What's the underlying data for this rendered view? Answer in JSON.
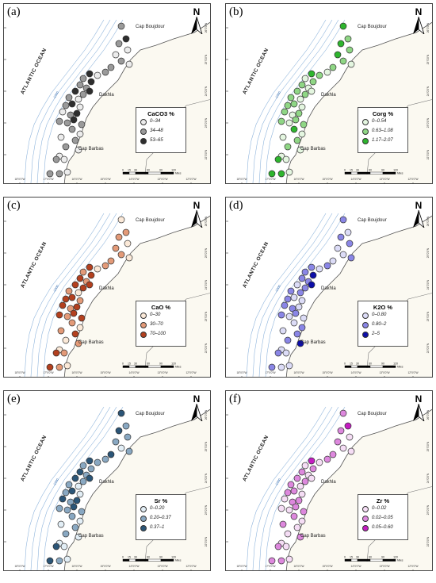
{
  "panels": [
    {
      "label": "(a)",
      "legend_title": "CaCO3 %",
      "classes": [
        "0–34",
        "34–48",
        "53–65"
      ],
      "colors": [
        "#ececec",
        "#9a9a9a",
        "#2e2e2e"
      ]
    },
    {
      "label": "(b)",
      "legend_title": "Corg %",
      "classes": [
        "0–0.54",
        "0.63–1.08",
        "1.17–2.07"
      ],
      "colors": [
        "#e4f6e0",
        "#8fd685",
        "#2eb52e"
      ]
    },
    {
      "label": "(c)",
      "legend_title": "CaO %",
      "classes": [
        "0–30",
        "30–70",
        "70–100"
      ],
      "colors": [
        "#fbe9d8",
        "#e39a78",
        "#b3401f"
      ]
    },
    {
      "label": "(d)",
      "legend_title": "K2O %",
      "classes": [
        "0–0.80",
        "0.80–2",
        "2–5"
      ],
      "colors": [
        "#dcdcf7",
        "#8a86e6",
        "#0d0ea9"
      ]
    },
    {
      "label": "(e)",
      "legend_title": "Sr %",
      "classes": [
        "0–0.20",
        "0.20–0.37",
        "0.37–1"
      ],
      "colors": [
        "#e2eef6",
        "#89a8c2",
        "#2b5577"
      ]
    },
    {
      "label": "(f)",
      "legend_title": "Zr %",
      "classes": [
        "0–0.02",
        "0.02–0.05",
        "0.05–0.60"
      ],
      "colors": [
        "#f5ddf5",
        "#dd88dd",
        "#c41dc1"
      ]
    }
  ],
  "map": {
    "north": "N",
    "ocean": "ATLANTIC OCEAN",
    "places": {
      "cap_boujdour": "Cap Boujdour",
      "dakhla": "Dakhla",
      "cap_barbas": "Cap Barbas"
    },
    "scale_ticks": [
      "0",
      "15",
      "30",
      "60",
      "90",
      "120"
    ],
    "scale_unit": "Miles",
    "isobath": "-1000",
    "lon_labels": [
      "18°0'0\"W",
      "17°0'0\"W",
      "16°0'0\"W",
      "15°0'0\"W",
      "14°0'0\"W",
      "13°0'0\"W",
      "12°0'0\"W"
    ],
    "lat_labels": [
      "26°0'0\"N",
      "25°0'0\"N",
      "24°0'0\"N",
      "23°0'0\"N",
      "22°0'0\"N"
    ]
  },
  "samples": [
    [
      1,
      2,
      0,
      1,
      2,
      1
    ],
    [
      2,
      1,
      1,
      0,
      1,
      2
    ],
    [
      1,
      2,
      1,
      1,
      2,
      1
    ],
    [
      0,
      1,
      0,
      1,
      1,
      0
    ],
    [
      0,
      2,
      1,
      0,
      1,
      1
    ],
    [
      1,
      1,
      1,
      0,
      0,
      0
    ],
    [
      0,
      0,
      0,
      1,
      1,
      0
    ],
    [
      1,
      1,
      1,
      0,
      2,
      1
    ],
    [
      1,
      0,
      1,
      1,
      1,
      1
    ],
    [
      0,
      1,
      0,
      0,
      1,
      0
    ],
    [
      2,
      2,
      2,
      1,
      2,
      2
    ],
    [
      1,
      0,
      1,
      1,
      1,
      0
    ],
    [
      2,
      1,
      2,
      2,
      1,
      1
    ],
    [
      1,
      1,
      2,
      1,
      2,
      1
    ],
    [
      1,
      0,
      1,
      1,
      1,
      0
    ],
    [
      2,
      1,
      2,
      0,
      2,
      1
    ],
    [
      1,
      1,
      2,
      1,
      1,
      1
    ],
    [
      2,
      0,
      2,
      2,
      2,
      0
    ],
    [
      1,
      1,
      1,
      1,
      1,
      1
    ],
    [
      0,
      0,
      0,
      1,
      0,
      0
    ],
    [
      2,
      1,
      2,
      0,
      2,
      1
    ],
    [
      1,
      1,
      2,
      1,
      1,
      1
    ],
    [
      0,
      0,
      1,
      0,
      0,
      0
    ],
    [
      0,
      1,
      2,
      1,
      2,
      0
    ],
    [
      1,
      0,
      1,
      1,
      1,
      1
    ],
    [
      2,
      1,
      2,
      0,
      2,
      1
    ],
    [
      1,
      1,
      2,
      1,
      1,
      0
    ],
    [
      1,
      0,
      1,
      0,
      1,
      0
    ],
    [
      2,
      1,
      2,
      1,
      2,
      1
    ],
    [
      1,
      1,
      2,
      0,
      1,
      1
    ],
    [
      0,
      0,
      0,
      1,
      0,
      0
    ],
    [
      1,
      2,
      1,
      0,
      1,
      1
    ],
    [
      1,
      1,
      2,
      1,
      1,
      0
    ],
    [
      0,
      0,
      1,
      0,
      0,
      1
    ],
    [
      1,
      1,
      0,
      1,
      1,
      0
    ],
    [
      0,
      0,
      1,
      2,
      0,
      1
    ],
    [
      0,
      0,
      0,
      0,
      0,
      0
    ],
    [
      1,
      2,
      2,
      1,
      2,
      1
    ],
    [
      0,
      0,
      1,
      0,
      0,
      0
    ],
    [
      1,
      2,
      2,
      1,
      2,
      1
    ],
    [
      1,
      2,
      1,
      0,
      1,
      1
    ],
    [
      0,
      0,
      0,
      0,
      0,
      0
    ]
  ]
}
